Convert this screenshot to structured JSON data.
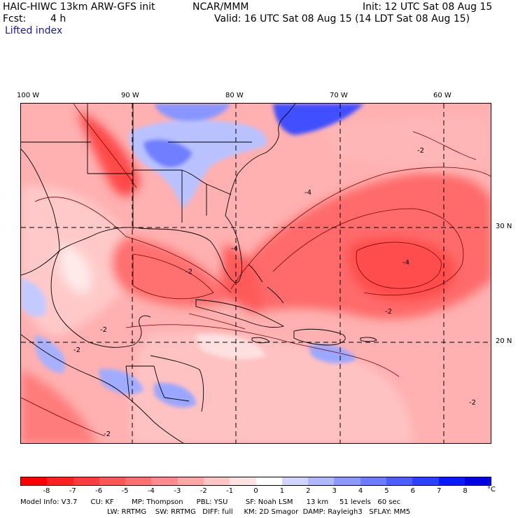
{
  "header": {
    "model": "HAIC-HIWC 13km ARW-GFS init",
    "org": "NCAR/MMM",
    "init": "Init: 12 UTC Sat 08 Aug 15",
    "fcst_label": "Fcst:",
    "fcst_value": "4 h",
    "valid": "Valid: 16 UTC Sat 08 Aug 15 (14 LDT Sat 08 Aug 15)",
    "field": "Lifted index"
  },
  "axes": {
    "longitudes": [
      {
        "label": "100 W",
        "lon": -100
      },
      {
        "label": "90 W",
        "lon": -90
      },
      {
        "label": "80 W",
        "lon": -80
      },
      {
        "label": "70 W",
        "lon": -70
      },
      {
        "label": "60 W",
        "lon": -60
      }
    ],
    "latitudes": [
      {
        "label": "30 N",
        "lat": 30
      },
      {
        "label": "20 N",
        "lat": 20
      }
    ]
  },
  "contour_labels": [
    "-2",
    "-2",
    "-4",
    "-2",
    "-2",
    "-2",
    "-2",
    "-2",
    "-4",
    "-4"
  ],
  "colorbar": {
    "unit": "°C",
    "ticks": [
      "-8",
      "-7",
      "-6",
      "-5",
      "-4",
      "-3",
      "-2",
      "-1",
      "0",
      "1",
      "2",
      "3",
      "4",
      "5",
      "6",
      "7",
      "8"
    ],
    "colors": [
      "#ff0000",
      "#ff2020",
      "#ff3b3b",
      "#ff5656",
      "#ff7070",
      "#ff8c8c",
      "#ffa8a8",
      "#ffc6c6",
      "#ffe2e2",
      "#ffffff",
      "#d0d6ff",
      "#b0b8ff",
      "#8f9aff",
      "#6e7cff",
      "#4d5eff",
      "#2c40ff",
      "#0a1aff",
      "#0000e8"
    ]
  },
  "model_info": {
    "line1": "Model Info: V3.7      CU: KF        MP: Thompson      PBL: YSU        SF: Noah LSM      13 km     51 levels   60 sec",
    "line2": "LW: RRTMG    SW: RRTMG   DIFF: full     KM: 2D Smagor  DAMP: Rayleigh3   SFLAY: MM5"
  }
}
